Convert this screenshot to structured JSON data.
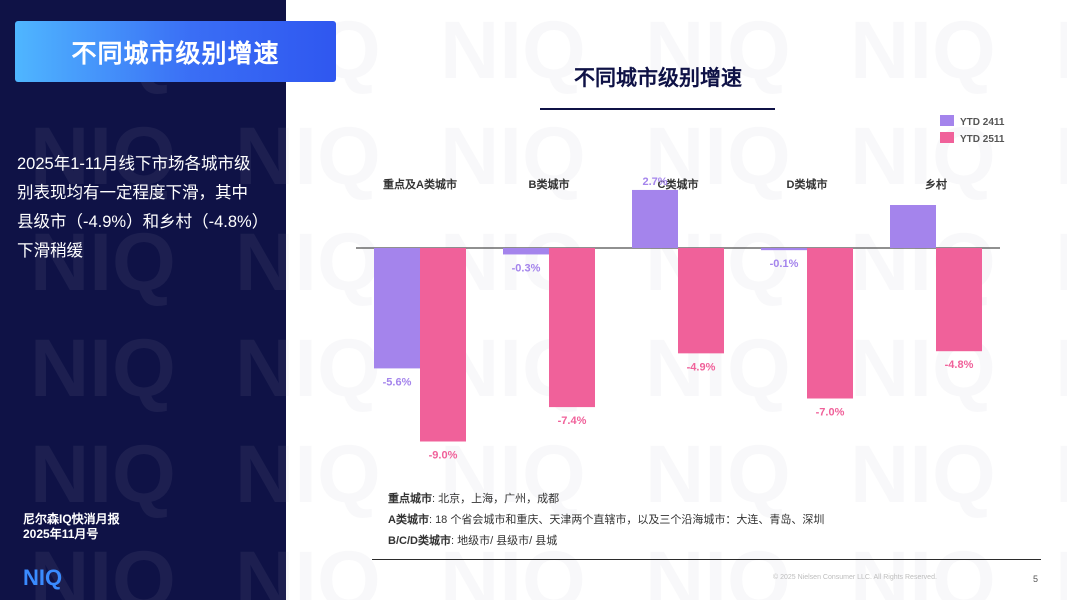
{
  "header": {
    "title": "不同城市级别增速"
  },
  "sidebar": {
    "lines": [
      "2025年1-11月线下市场各城市级",
      "别表现均有一定程度下滑，其中",
      "县级市（-4.9%）和乡村（-4.8%）",
      "下滑稍缓"
    ],
    "report_lines": [
      "尼尔森IQ快消月报",
      "2025年11月号"
    ],
    "logo_text": "NIQ"
  },
  "watermark_text": "NIQ",
  "chart_data": {
    "type": "bar",
    "title": "不同城市级别增速",
    "categories": [
      "重点及A类城市",
      "B类城市",
      "C类城市",
      "D类城市",
      "乡村"
    ],
    "series": [
      {
        "name": "YTD 2411",
        "values": [
          -5.6,
          -0.3,
          2.7,
          -0.1,
          null
        ]
      },
      {
        "name": "YTD 2511",
        "values": [
          -9.0,
          -7.4,
          -4.9,
          -7.0,
          -4.8
        ]
      }
    ],
    "unit": "%",
    "legend": "top-right",
    "colors": {
      "YTD 2411": "#a484ec",
      "YTD 2511": "#f0619a"
    },
    "ylim": [
      -10,
      4
    ],
    "grid": false
  },
  "notes": [
    {
      "label": "重点城市",
      "text": ": 北京，上海，广州，成都"
    },
    {
      "label": "A类城市",
      "text": ": 18 个省会城市和重庆、天津两个直辖市，以及三个沿海城市：大连、青岛、深圳"
    },
    {
      "label": "B/C/D类城市",
      "text": ":  地级市/ 县级市/ 县城"
    }
  ],
  "footer": {
    "copyright": "© 2025 Nielsen Consumer LLC. All Rights Reserved.",
    "page": "5"
  },
  "colors": {
    "navy": "#0f1246",
    "accent_blue": "#3a6ef5"
  }
}
